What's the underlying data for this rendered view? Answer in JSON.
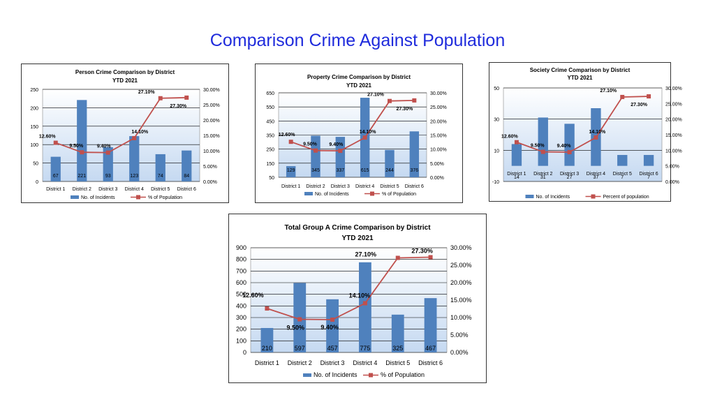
{
  "page": {
    "title": "Comparison Crime Against Population"
  },
  "colors": {
    "bar": "#4f81bd",
    "line": "#c0504d",
    "plotTop": "#ffffff",
    "plotBottom": "#c5d9f1",
    "grid": "#000000"
  },
  "chart_data": [
    {
      "type": "bar",
      "title": "Person Crime Comparison by District",
      "subtitle": "YTD 2021",
      "categories": [
        "District 1",
        "District 2",
        "District 3",
        "District 4",
        "District 5",
        "District 6"
      ],
      "series": [
        {
          "name": "No. of Incidents",
          "type": "bar",
          "axis": "left",
          "values": [
            67,
            221,
            93,
            123,
            74,
            84
          ],
          "labels": [
            "67",
            "221",
            "93",
            "123",
            "74",
            "84"
          ]
        },
        {
          "name": "% of Population",
          "type": "line",
          "axis": "right",
          "values": [
            12.6,
            9.5,
            9.4,
            14.1,
            27.1,
            27.3
          ],
          "labels": [
            "12.60%",
            "9.50%",
            "9.40%",
            "14.10%",
            "27.10%",
            "27.30%"
          ]
        }
      ],
      "ylim": [
        0,
        250
      ],
      "yticks": [
        {
          "v": 0,
          "label": "0"
        },
        {
          "v": 50,
          "label": "50"
        },
        {
          "v": 100,
          "label": "100"
        },
        {
          "v": 150,
          "label": "150"
        },
        {
          "v": 200,
          "label": "200"
        },
        {
          "v": 250,
          "label": "250"
        }
      ],
      "y2lim": [
        0,
        30
      ],
      "y2ticks": [
        {
          "v": 0,
          "label": "0.00%"
        },
        {
          "v": 5,
          "label": "5.00%"
        },
        {
          "v": 10,
          "label": "10.00%"
        },
        {
          "v": 15,
          "label": "15.00%"
        },
        {
          "v": 20,
          "label": "20.00%"
        },
        {
          "v": 25,
          "label": "25.00%"
        },
        {
          "v": 30,
          "label": "30.00%"
        }
      ],
      "legend": "bottom",
      "grid": true
    },
    {
      "type": "bar",
      "title": "Property Crime Comparison by District",
      "subtitle": "YTD 2021",
      "categories": [
        "District 1",
        "District 2",
        "District 3",
        "District 4",
        "District 5",
        "District 6"
      ],
      "series": [
        {
          "name": "No. of Incidents",
          "type": "bar",
          "axis": "left",
          "values": [
            129,
            345,
            337,
            615,
            244,
            376
          ],
          "labels": [
            "129",
            "345",
            "337",
            "615",
            "244",
            "376"
          ]
        },
        {
          "name": "% of Population",
          "type": "line",
          "axis": "right",
          "values": [
            12.6,
            9.5,
            9.4,
            14.1,
            27.1,
            27.3
          ],
          "labels": [
            "12.60%",
            "9.50%",
            "9.40%",
            "14.10%",
            "27.10%",
            "27.30%"
          ]
        }
      ],
      "ylim": [
        50,
        650
      ],
      "yticks": [
        {
          "v": 50,
          "label": "50"
        },
        {
          "v": 150,
          "label": "150"
        },
        {
          "v": 250,
          "label": "250"
        },
        {
          "v": 350,
          "label": "350"
        },
        {
          "v": 450,
          "label": "450"
        },
        {
          "v": 550,
          "label": "550"
        },
        {
          "v": 650,
          "label": "650"
        }
      ],
      "y2lim": [
        0,
        30
      ],
      "y2ticks": [
        {
          "v": 0,
          "label": "0.00%"
        },
        {
          "v": 5,
          "label": "5.00%"
        },
        {
          "v": 10,
          "label": "10.00%"
        },
        {
          "v": 15,
          "label": "15.00%"
        },
        {
          "v": 20,
          "label": "20.00%"
        },
        {
          "v": 25,
          "label": "25.00%"
        },
        {
          "v": 30,
          "label": "30.00%"
        }
      ],
      "legend": "bottom",
      "grid": true
    },
    {
      "type": "bar",
      "title": "Society Crime Comparison by District",
      "subtitle": "YTD 2021",
      "categories": [
        "District 1",
        "District 2",
        "District 3",
        "District 4",
        "District 5",
        "District 6"
      ],
      "series": [
        {
          "name": "No. of Incidents",
          "type": "bar",
          "axis": "left",
          "values": [
            14,
            31,
            27,
            37,
            7,
            7
          ],
          "labels": [
            "14",
            "31",
            "27",
            "37",
            "7",
            "7"
          ]
        },
        {
          "name": "Percent of population",
          "type": "line",
          "axis": "right",
          "values": [
            12.6,
            9.5,
            9.4,
            14.1,
            27.1,
            27.3
          ],
          "labels": [
            "12.60%",
            "9.50%",
            "9.40%",
            "14.10%",
            "27.10%",
            "27.30%"
          ]
        }
      ],
      "ylim": [
        -10,
        50
      ],
      "yticks": [
        {
          "v": -10,
          "label": "-10"
        },
        {
          "v": 10,
          "label": "10"
        },
        {
          "v": 30,
          "label": "30"
        },
        {
          "v": 50,
          "label": "50"
        }
      ],
      "y2lim": [
        0,
        30
      ],
      "y2ticks": [
        {
          "v": 0,
          "label": "0.00%"
        },
        {
          "v": 5,
          "label": "5.00%"
        },
        {
          "v": 10,
          "label": "10.00%"
        },
        {
          "v": 15,
          "label": "15.00%"
        },
        {
          "v": 20,
          "label": "20.00%"
        },
        {
          "v": 25,
          "label": "25.00%"
        },
        {
          "v": 30,
          "label": "30.00%"
        }
      ],
      "legend": "bottom",
      "grid": true
    },
    {
      "type": "bar",
      "title": "Total Group A Crime Comparison by District",
      "subtitle": "YTD 2021",
      "categories": [
        "District 1",
        "District 2",
        "District 3",
        "District 4",
        "District 5",
        "District 6"
      ],
      "series": [
        {
          "name": "No. of Incidents",
          "type": "bar",
          "axis": "left",
          "values": [
            210,
            597,
            457,
            775,
            325,
            467
          ],
          "labels": [
            "210",
            "597",
            "457",
            "775",
            "325",
            "467"
          ]
        },
        {
          "name": "% of Population",
          "type": "line",
          "axis": "right",
          "values": [
            12.6,
            9.5,
            9.4,
            14.1,
            27.1,
            27.3
          ],
          "labels": [
            "12.60%",
            "9.50%",
            "9.40%",
            "14.10%",
            "27.10%",
            "27.30%"
          ]
        }
      ],
      "ylim": [
        0,
        900
      ],
      "yticks": [
        {
          "v": 0,
          "label": "0"
        },
        {
          "v": 100,
          "label": "100"
        },
        {
          "v": 200,
          "label": "200"
        },
        {
          "v": 300,
          "label": "300"
        },
        {
          "v": 400,
          "label": "400"
        },
        {
          "v": 500,
          "label": "500"
        },
        {
          "v": 600,
          "label": "600"
        },
        {
          "v": 700,
          "label": "700"
        },
        {
          "v": 800,
          "label": "800"
        },
        {
          "v": 900,
          "label": "900"
        }
      ],
      "y2lim": [
        0,
        30
      ],
      "y2ticks": [
        {
          "v": 0,
          "label": "0.00%"
        },
        {
          "v": 5,
          "label": "5.00%"
        },
        {
          "v": 10,
          "label": "10.00%"
        },
        {
          "v": 15,
          "label": "15.00%"
        },
        {
          "v": 20,
          "label": "20.00%"
        },
        {
          "v": 25,
          "label": "25.00%"
        },
        {
          "v": 30,
          "label": "30.00%"
        }
      ],
      "legend": "bottom",
      "grid": true
    }
  ]
}
